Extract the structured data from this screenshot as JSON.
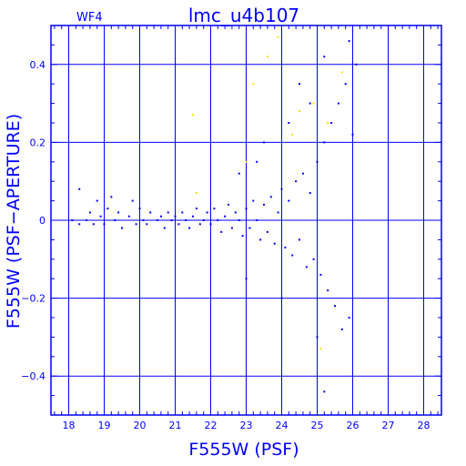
{
  "colors": {
    "axes": "#0000ff",
    "points_primary": "#0000ff",
    "points_secondary": "#ffdd00"
  },
  "chart_data": {
    "type": "scatter",
    "title": "lmc_u4b107",
    "subtitle": "WF4",
    "xlabel": "F555W (PSF)",
    "ylabel": "F555W (PSF−APERTURE)",
    "xlim": [
      17.5,
      28.5
    ],
    "ylim": [
      -0.5,
      0.5
    ],
    "grid": true,
    "xticks": [
      18,
      19,
      20,
      21,
      22,
      23,
      24,
      25,
      26,
      27,
      28
    ],
    "yticks": [
      -0.4,
      -0.2,
      0,
      0.2,
      0.4
    ],
    "ytick_labels": [
      "−0.4",
      "−0.2",
      "0",
      "0.2",
      "0.4"
    ],
    "series": [
      {
        "color": "#0000ff",
        "points": [
          [
            18.1,
            0.0
          ],
          [
            18.3,
            -0.01
          ],
          [
            18.3,
            0.08
          ],
          [
            18.5,
            0.0
          ],
          [
            18.6,
            0.02
          ],
          [
            18.7,
            -0.01
          ],
          [
            18.8,
            0.05
          ],
          [
            18.9,
            0.01
          ],
          [
            19.0,
            -0.01
          ],
          [
            19.1,
            0.03
          ],
          [
            19.2,
            0.06
          ],
          [
            19.3,
            0.0
          ],
          [
            19.4,
            0.02
          ],
          [
            19.5,
            -0.02
          ],
          [
            19.7,
            0.01
          ],
          [
            19.8,
            0.05
          ],
          [
            19.9,
            -0.01
          ],
          [
            20.0,
            0.03
          ],
          [
            20.1,
            0.0
          ],
          [
            20.2,
            -0.01
          ],
          [
            20.3,
            0.02
          ],
          [
            20.5,
            0.0
          ],
          [
            20.6,
            0.01
          ],
          [
            20.7,
            -0.02
          ],
          [
            20.8,
            0.02
          ],
          [
            20.9,
            0.0
          ],
          [
            21.0,
            0.01
          ],
          [
            21.1,
            -0.01
          ],
          [
            21.2,
            0.02
          ],
          [
            21.3,
            0.0
          ],
          [
            21.4,
            -0.02
          ],
          [
            21.5,
            0.01
          ],
          [
            21.6,
            0.03
          ],
          [
            21.7,
            -0.01
          ],
          [
            21.8,
            0.0
          ],
          [
            21.9,
            0.02
          ],
          [
            22.0,
            -0.01
          ],
          [
            22.1,
            0.03
          ],
          [
            22.2,
            0.0
          ],
          [
            22.3,
            -0.03
          ],
          [
            22.4,
            0.01
          ],
          [
            22.5,
            0.04
          ],
          [
            22.6,
            -0.02
          ],
          [
            22.7,
            0.02
          ],
          [
            22.8,
            0.0
          ],
          [
            22.9,
            -0.04
          ],
          [
            23.0,
            0.03
          ],
          [
            23.1,
            -0.02
          ],
          [
            23.2,
            0.05
          ],
          [
            23.3,
            0.0
          ],
          [
            23.4,
            -0.05
          ],
          [
            23.5,
            0.04
          ],
          [
            23.6,
            -0.03
          ],
          [
            23.7,
            0.06
          ],
          [
            23.8,
            -0.06
          ],
          [
            23.9,
            0.02
          ],
          [
            24.0,
            0.08
          ],
          [
            24.1,
            -0.07
          ],
          [
            24.2,
            0.05
          ],
          [
            24.3,
            -0.09
          ],
          [
            24.4,
            0.1
          ],
          [
            24.5,
            -0.05
          ],
          [
            24.6,
            0.12
          ],
          [
            24.7,
            -0.12
          ],
          [
            24.8,
            0.07
          ],
          [
            24.9,
            -0.1
          ],
          [
            25.0,
            0.15
          ],
          [
            25.1,
            -0.14
          ],
          [
            25.2,
            0.2
          ],
          [
            25.3,
            -0.18
          ],
          [
            25.4,
            0.25
          ],
          [
            25.5,
            -0.22
          ],
          [
            25.6,
            0.3
          ],
          [
            25.7,
            -0.28
          ],
          [
            25.8,
            0.35
          ],
          [
            25.9,
            -0.25
          ],
          [
            26.0,
            0.22
          ],
          [
            26.1,
            0.4
          ],
          [
            23.5,
            0.2
          ],
          [
            24.2,
            0.25
          ],
          [
            24.8,
            0.3
          ],
          [
            25.2,
            0.42
          ],
          [
            25.9,
            0.46
          ],
          [
            24.0,
            -0.2
          ],
          [
            25.0,
            -0.3
          ],
          [
            25.2,
            -0.44
          ],
          [
            23.0,
            -0.15
          ],
          [
            22.8,
            0.12
          ],
          [
            23.3,
            0.15
          ],
          [
            24.5,
            0.35
          ]
        ]
      },
      {
        "color": "#ffdd00",
        "points": [
          [
            21.5,
            0.27
          ],
          [
            23.2,
            0.35
          ],
          [
            23.6,
            0.42
          ],
          [
            23.9,
            0.47
          ],
          [
            24.5,
            0.28
          ],
          [
            24.9,
            0.3
          ],
          [
            25.3,
            0.25
          ],
          [
            25.7,
            0.38
          ],
          [
            21.6,
            0.07
          ],
          [
            23.0,
            0.15
          ],
          [
            25.1,
            -0.33
          ],
          [
            24.3,
            0.22
          ]
        ]
      }
    ]
  }
}
